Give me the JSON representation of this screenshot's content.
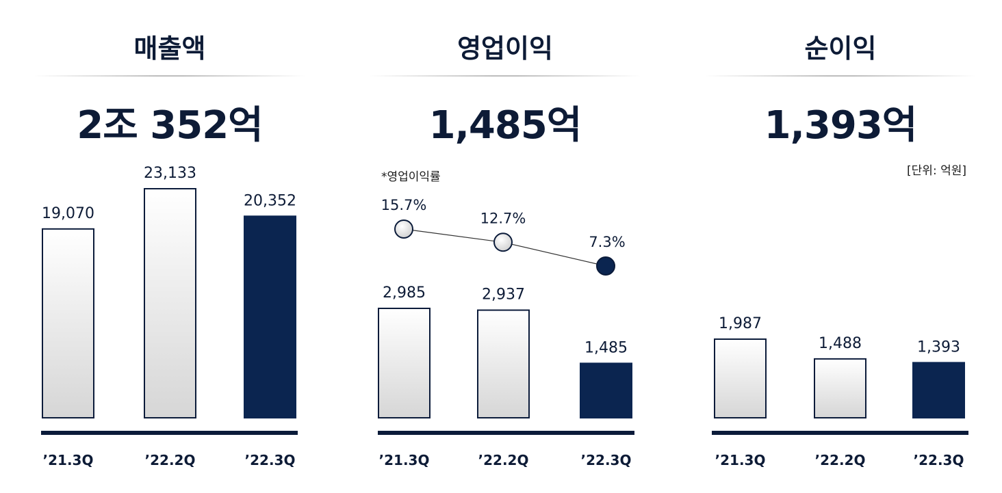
{
  "colors": {
    "navy": "#0b2550",
    "text": "#0d1b36",
    "bar_light_top": "#ffffff",
    "bar_light_bottom": "#d9d9d9",
    "axis": "#0b1b3a"
  },
  "unit_note": "[단위: 억원]",
  "margin_note": "*영업이익률",
  "chart_data": [
    {
      "type": "bar",
      "title": "매출액",
      "headline": "2조 352억",
      "categories": [
        "’21.3Q",
        "’22.2Q",
        "’22.3Q"
      ],
      "values": [
        19070,
        23133,
        20352
      ],
      "value_labels": [
        "19,070",
        "23,133",
        "20,352"
      ],
      "highlight_index": 2
    },
    {
      "type": "bar",
      "title": "영업이익",
      "headline": "1,485억",
      "categories": [
        "’21.3Q",
        "’22.2Q",
        "’22.3Q"
      ],
      "values": [
        2985,
        2937,
        1485
      ],
      "value_labels": [
        "2,985",
        "2,937",
        "1,485"
      ],
      "highlight_index": 2,
      "line_series": {
        "name": "*영업이익률",
        "values": [
          15.7,
          12.7,
          7.3
        ],
        "value_labels": [
          "15.7%",
          "12.7%",
          "7.3%"
        ]
      }
    },
    {
      "type": "bar",
      "title": "순이익",
      "headline": "1,393억",
      "categories": [
        "’21.3Q",
        "’22.2Q",
        "’22.3Q"
      ],
      "values": [
        1987,
        1488,
        1393
      ],
      "value_labels": [
        "1,987",
        "1,488",
        "1,393"
      ],
      "highlight_index": 2
    }
  ]
}
